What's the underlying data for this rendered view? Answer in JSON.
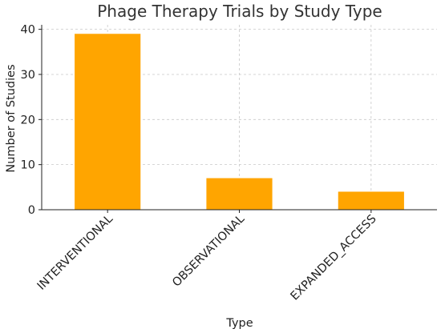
{
  "chart_data": {
    "type": "bar",
    "title": "Phage Therapy Trials by Study Type",
    "xlabel": "Type",
    "ylabel": "Number of Studies",
    "categories": [
      "INTERVENTIONAL",
      "OBSERVATIONAL",
      "EXPANDED_ACCESS"
    ],
    "values": [
      39,
      7,
      4
    ],
    "ylim": [
      0,
      41
    ],
    "yticks": [
      0,
      10,
      20,
      30,
      40
    ],
    "grid": true,
    "bar_color": "#FFA500"
  }
}
